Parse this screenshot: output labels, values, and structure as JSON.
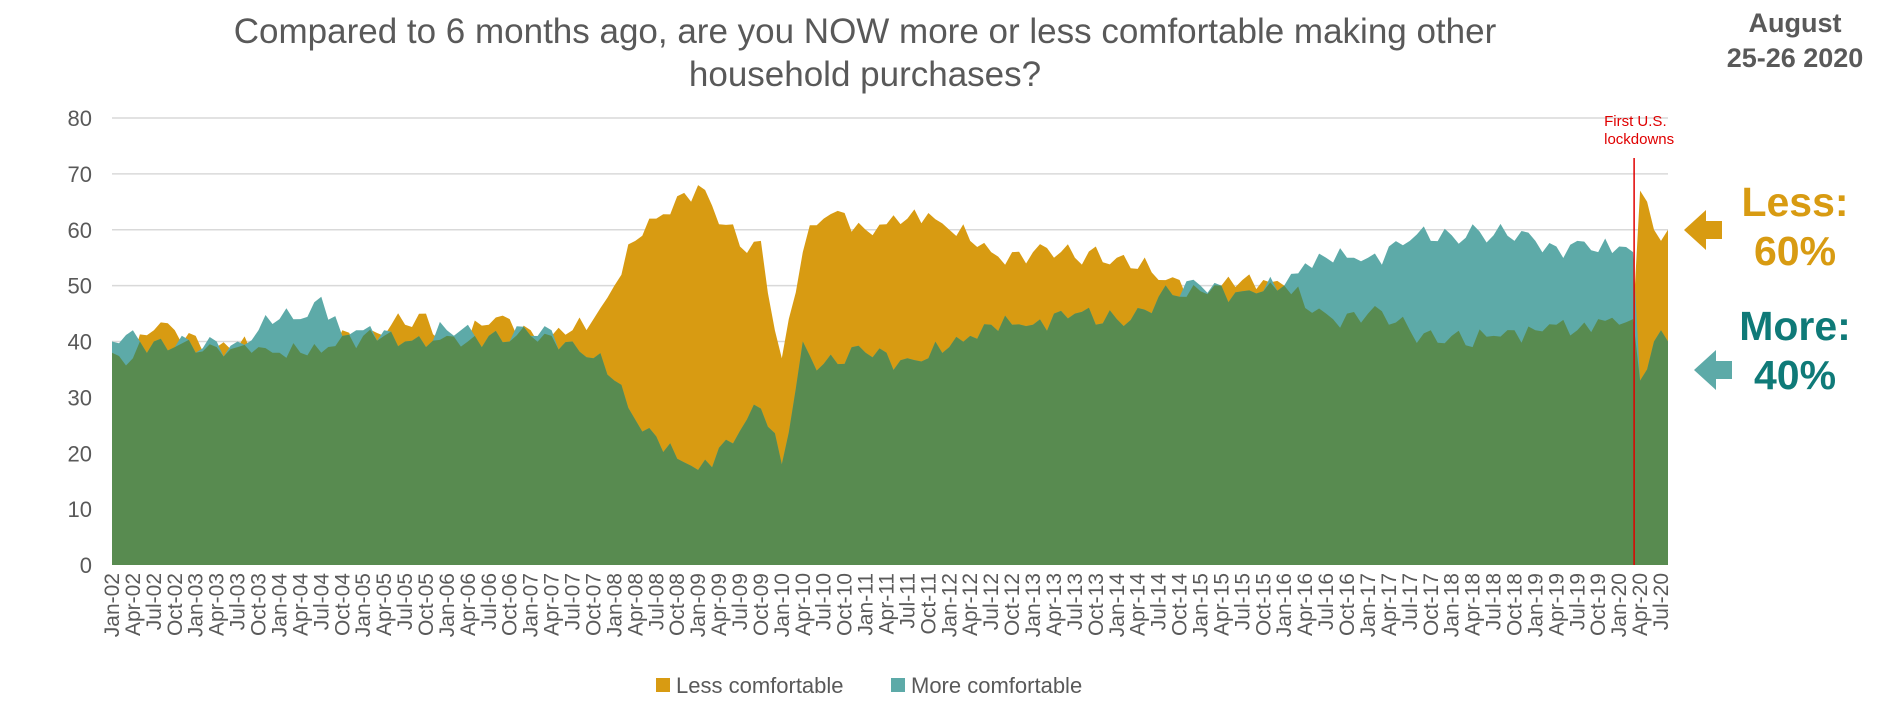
{
  "title": "Compared to 6 months ago, are you NOW more or less comfortable making other household purchases?",
  "date_line1": "August",
  "date_line2": "25-26 2020",
  "annotation_line1": "First U.S.",
  "annotation_line2": "lockdowns",
  "less_callout_label": "Less:",
  "less_callout_value": "60%",
  "more_callout_label": "More:",
  "more_callout_value": "40%",
  "colors": {
    "less": "#D89B12",
    "more": "#5DAAA8",
    "overlap": "#588B50",
    "grid": "#D9D9D9",
    "axis_text": "#595959",
    "annotation": "#E00000",
    "more_text": "#0F7A78"
  },
  "chart_data": {
    "type": "area",
    "title": "Compared to 6 months ago, are you NOW more or less comfortable making other household purchases?",
    "xlabel": "",
    "ylabel": "",
    "ylim": [
      0,
      80
    ],
    "yticks": [
      0,
      10,
      20,
      30,
      40,
      50,
      60,
      70,
      80
    ],
    "grid": true,
    "legend_position": "bottom",
    "x_start": "Jan-02",
    "x_end": "Aug-20",
    "x_tick_labels": [
      "Jan-02",
      "Apr-02",
      "Jul-02",
      "Oct-02",
      "Jan-03",
      "Apr-03",
      "Jul-03",
      "Oct-03",
      "Jan-04",
      "Apr-04",
      "Jul-04",
      "Oct-04",
      "Jan-05",
      "Apr-05",
      "Jul-05",
      "Oct-05",
      "Jan-06",
      "Apr-06",
      "Jul-06",
      "Oct-06",
      "Jan-07",
      "Apr-07",
      "Jul-07",
      "Oct-07",
      "Jan-08",
      "Apr-08",
      "Jul-08",
      "Oct-08",
      "Jan-09",
      "Apr-09",
      "Jul-09",
      "Oct-09",
      "Jan-10",
      "Apr-10",
      "Jul-10",
      "Oct-10",
      "Jan-11",
      "Apr-11",
      "Jul-11",
      "Oct-11",
      "Jan-12",
      "Apr-12",
      "Jul-12",
      "Oct-12",
      "Jan-13",
      "Apr-13",
      "Jul-13",
      "Oct-13",
      "Jan-14",
      "Apr-14",
      "Jul-14",
      "Oct-14",
      "Jan-15",
      "Apr-15",
      "Jul-15",
      "Oct-15",
      "Jan-16",
      "Apr-16",
      "Jul-16",
      "Oct-16",
      "Jan-17",
      "Apr-17",
      "Jul-17",
      "Oct-17",
      "Jan-18",
      "Apr-18",
      "Jul-18",
      "Oct-18",
      "Jan-19",
      "Apr-19",
      "Jul-19",
      "Oct-19",
      "Jan-20",
      "Apr-20",
      "Jul-20"
    ],
    "annotations": [
      {
        "x": "Mar-20",
        "text": "First U.S. lockdowns"
      }
    ],
    "series": [
      {
        "name": "Less comfortable",
        "anchors": [
          [
            "Jan-02",
            38
          ],
          [
            "Apr-02",
            37
          ],
          [
            "Jul-02",
            42
          ],
          [
            "Oct-02",
            42
          ],
          [
            "Jan-03",
            41
          ],
          [
            "Apr-03",
            39
          ],
          [
            "Jul-03",
            39
          ],
          [
            "Oct-03",
            39
          ],
          [
            "Jan-04",
            38
          ],
          [
            "Apr-04",
            38
          ],
          [
            "Jul-04",
            38
          ],
          [
            "Oct-04",
            42
          ],
          [
            "Jan-05",
            41
          ],
          [
            "Apr-05",
            41
          ],
          [
            "Jul-05",
            43
          ],
          [
            "Oct-05",
            45
          ],
          [
            "Jan-06",
            41
          ],
          [
            "Apr-06",
            40
          ],
          [
            "Jul-06",
            43
          ],
          [
            "Oct-06",
            44
          ],
          [
            "Jan-07",
            42
          ],
          [
            "Apr-07",
            41
          ],
          [
            "Jul-07",
            42
          ],
          [
            "Oct-07",
            44
          ],
          [
            "Jan-08",
            50
          ],
          [
            "Apr-08",
            58
          ],
          [
            "Jul-08",
            62
          ],
          [
            "Oct-08",
            66
          ],
          [
            "Jan-09",
            68
          ],
          [
            "Apr-09",
            61
          ],
          [
            "Jul-09",
            57
          ],
          [
            "Oct-09",
            58
          ],
          [
            "Jan-10",
            37
          ],
          [
            "Apr-10",
            56
          ],
          [
            "Jul-10",
            62
          ],
          [
            "Oct-10",
            63
          ],
          [
            "Jan-11",
            60
          ],
          [
            "Apr-11",
            61
          ],
          [
            "Jul-11",
            62
          ],
          [
            "Oct-11",
            63
          ],
          [
            "Jan-12",
            60
          ],
          [
            "Apr-12",
            58
          ],
          [
            "Jul-12",
            56
          ],
          [
            "Oct-12",
            56
          ],
          [
            "Jan-13",
            56
          ],
          [
            "Apr-13",
            55
          ],
          [
            "Jul-13",
            55
          ],
          [
            "Oct-13",
            57
          ],
          [
            "Jan-14",
            55
          ],
          [
            "Apr-14",
            53
          ],
          [
            "Jul-14",
            51
          ],
          [
            "Oct-14",
            51
          ],
          [
            "Jan-15",
            49
          ],
          [
            "Apr-15",
            50
          ],
          [
            "Jul-15",
            51
          ],
          [
            "Oct-15",
            51
          ],
          [
            "Jan-16",
            50
          ],
          [
            "Apr-16",
            46
          ],
          [
            "Jul-16",
            45
          ],
          [
            "Oct-16",
            45
          ],
          [
            "Jan-17",
            45
          ],
          [
            "Apr-17",
            43
          ],
          [
            "Jul-17",
            42
          ],
          [
            "Oct-17",
            42
          ],
          [
            "Jan-18",
            41
          ],
          [
            "Apr-18",
            39
          ],
          [
            "Jul-18",
            41
          ],
          [
            "Oct-18",
            42
          ],
          [
            "Jan-19",
            42
          ],
          [
            "Apr-19",
            43
          ],
          [
            "Jul-19",
            42
          ],
          [
            "Oct-19",
            44
          ],
          [
            "Jan-20",
            43
          ],
          [
            "Mar-20",
            44
          ],
          [
            "Apr-20",
            67
          ],
          [
            "May-20",
            65
          ],
          [
            "Jun-20",
            60
          ],
          [
            "Jul-20",
            58
          ],
          [
            "Aug-20",
            60
          ]
        ]
      },
      {
        "name": "More comfortable",
        "anchors": [
          [
            "Jan-02",
            40
          ],
          [
            "Apr-02",
            42
          ],
          [
            "Jul-02",
            40
          ],
          [
            "Oct-02",
            39
          ],
          [
            "Jan-03",
            38
          ],
          [
            "Apr-03",
            40
          ],
          [
            "Jul-03",
            40
          ],
          [
            "Oct-03",
            42
          ],
          [
            "Jan-04",
            44
          ],
          [
            "Apr-04",
            44
          ],
          [
            "Jul-04",
            48
          ],
          [
            "Oct-04",
            41
          ],
          [
            "Jan-05",
            42
          ],
          [
            "Apr-05",
            42
          ],
          [
            "Jul-05",
            40
          ],
          [
            "Oct-05",
            39
          ],
          [
            "Jan-06",
            42
          ],
          [
            "Apr-06",
            43
          ],
          [
            "Jul-06",
            41
          ],
          [
            "Oct-06",
            40
          ],
          [
            "Jan-07",
            41
          ],
          [
            "Apr-07",
            42
          ],
          [
            "Jul-07",
            40
          ],
          [
            "Oct-07",
            37
          ],
          [
            "Jan-08",
            33
          ],
          [
            "Apr-08",
            26
          ],
          [
            "Jul-08",
            23
          ],
          [
            "Oct-08",
            19
          ],
          [
            "Jan-09",
            17
          ],
          [
            "Apr-09",
            21
          ],
          [
            "Jul-09",
            24
          ],
          [
            "Oct-09",
            28
          ],
          [
            "Jan-10",
            18
          ],
          [
            "Apr-10",
            40
          ],
          [
            "Jul-10",
            36
          ],
          [
            "Oct-10",
            36
          ],
          [
            "Jan-11",
            38
          ],
          [
            "Apr-11",
            38
          ],
          [
            "Jul-11",
            37
          ],
          [
            "Oct-11",
            37
          ],
          [
            "Jan-12",
            39
          ],
          [
            "Apr-12",
            41
          ],
          [
            "Jul-12",
            43
          ],
          [
            "Oct-12",
            43
          ],
          [
            "Jan-13",
            43
          ],
          [
            "Apr-13",
            45
          ],
          [
            "Jul-13",
            45
          ],
          [
            "Oct-13",
            43
          ],
          [
            "Jan-14",
            44
          ],
          [
            "Apr-14",
            46
          ],
          [
            "Jul-14",
            48
          ],
          [
            "Oct-14",
            48
          ],
          [
            "Jan-15",
            50
          ],
          [
            "Apr-15",
            50
          ],
          [
            "Jul-15",
            49
          ],
          [
            "Oct-15",
            49
          ],
          [
            "Jan-16",
            50
          ],
          [
            "Apr-16",
            54
          ],
          [
            "Jul-16",
            55
          ],
          [
            "Oct-16",
            55
          ],
          [
            "Jan-17",
            55
          ],
          [
            "Apr-17",
            57
          ],
          [
            "Jul-17",
            58
          ],
          [
            "Oct-17",
            58
          ],
          [
            "Jan-18",
            59
          ],
          [
            "Apr-18",
            61
          ],
          [
            "Jul-18",
            59
          ],
          [
            "Oct-18",
            58
          ],
          [
            "Jan-19",
            58
          ],
          [
            "Apr-19",
            57
          ],
          [
            "Jul-19",
            58
          ],
          [
            "Oct-19",
            56
          ],
          [
            "Jan-20",
            57
          ],
          [
            "Mar-20",
            56
          ],
          [
            "Apr-20",
            33
          ],
          [
            "May-20",
            35
          ],
          [
            "Jun-20",
            40
          ],
          [
            "Jul-20",
            42
          ],
          [
            "Aug-20",
            40
          ]
        ]
      }
    ]
  }
}
